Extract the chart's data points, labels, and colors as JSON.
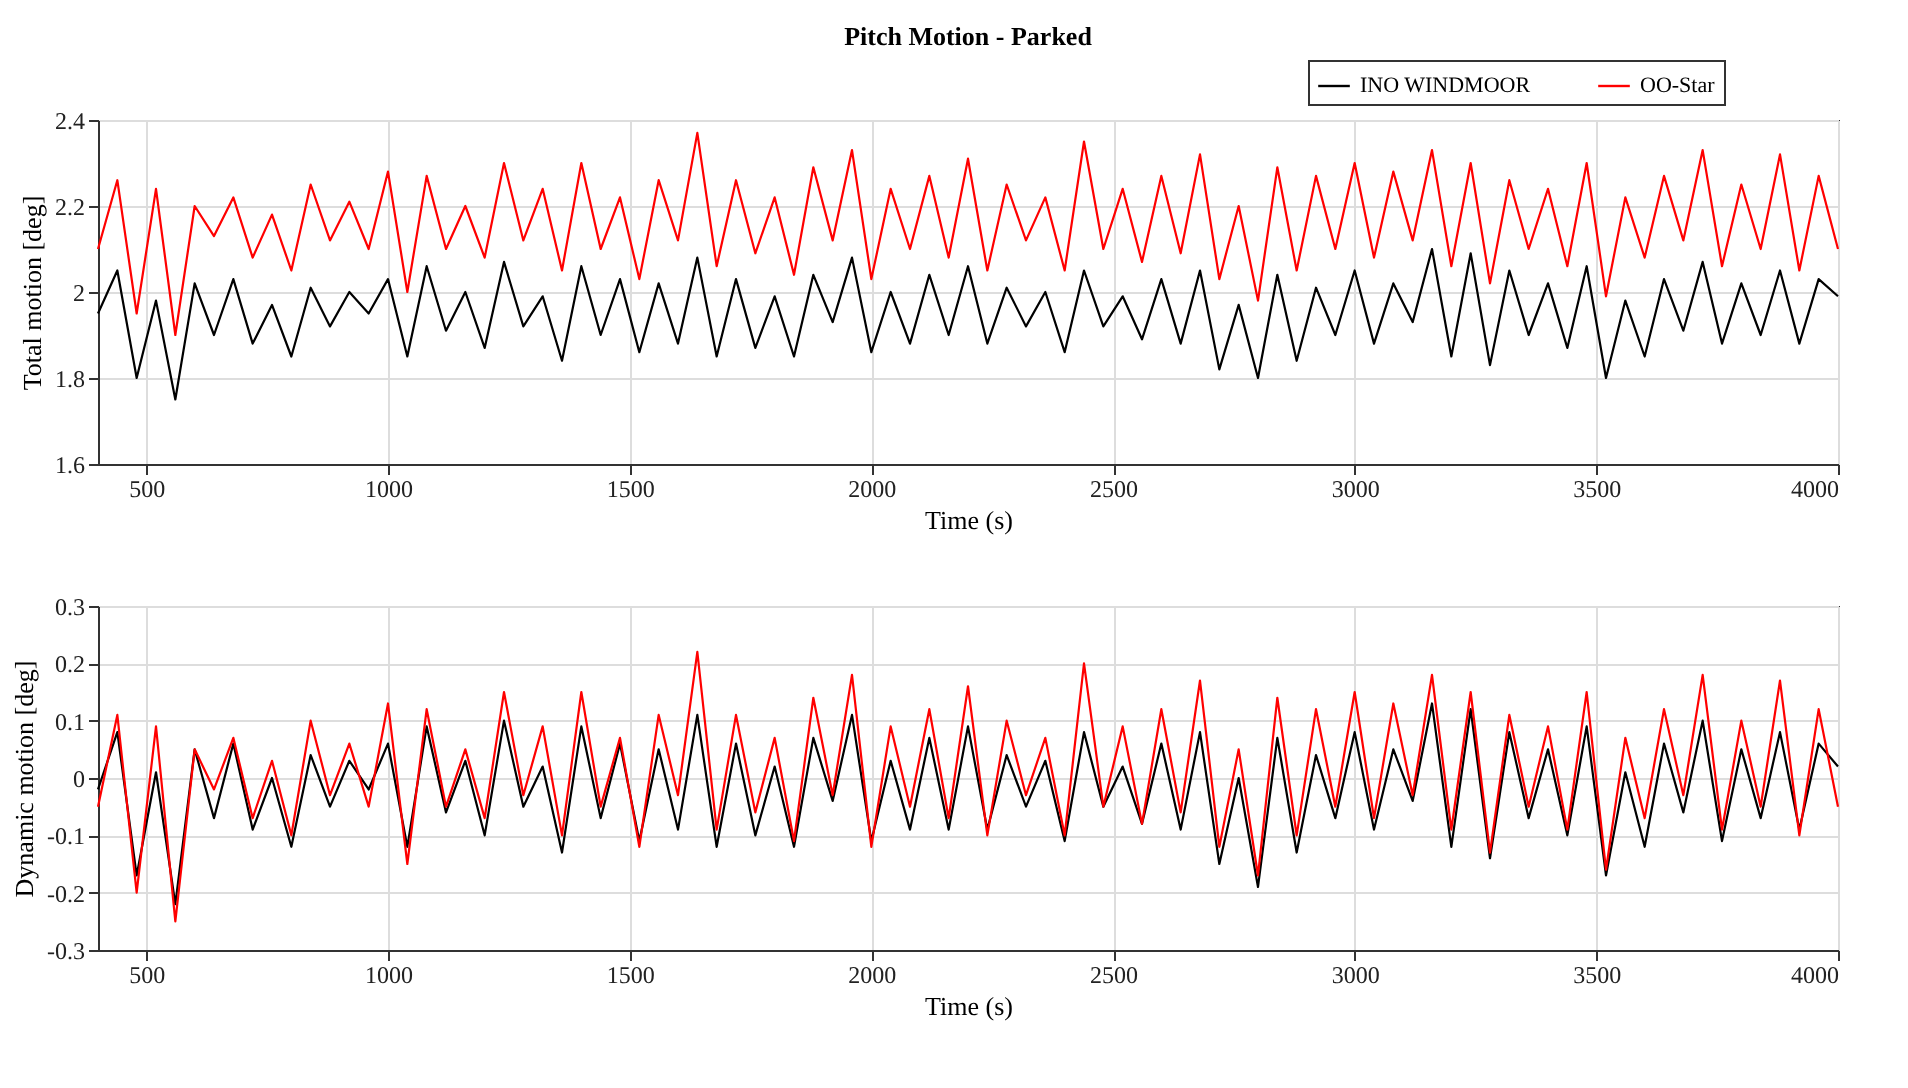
{
  "chart_data": [
    {
      "type": "line",
      "title": "Pitch Motion - Parked",
      "xlabel": "Time (s)",
      "ylabel": "Total motion [deg]",
      "x": [
        400,
        440,
        480,
        520,
        560,
        600,
        640,
        680,
        720,
        760,
        800,
        840,
        880,
        920,
        960,
        1000,
        1040,
        1080,
        1120,
        1160,
        1200,
        1240,
        1280,
        1320,
        1360,
        1400,
        1440,
        1480,
        1520,
        1560,
        1600,
        1640,
        1680,
        1720,
        1760,
        1800,
        1840,
        1880,
        1920,
        1960,
        2000,
        2040,
        2080,
        2120,
        2160,
        2200,
        2240,
        2280,
        2320,
        2360,
        2400,
        2440,
        2480,
        2520,
        2560,
        2600,
        2640,
        2680,
        2720,
        2760,
        2800,
        2840,
        2880,
        2920,
        2960,
        3000,
        3040,
        3080,
        3120,
        3160,
        3200,
        3240,
        3280,
        3320,
        3360,
        3400,
        3440,
        3480,
        3520,
        3560,
        3600,
        3640,
        3680,
        3720,
        3760,
        3800,
        3840,
        3880,
        3920,
        3960,
        4000
      ],
      "series": [
        {
          "name": "INO WINDMOOR",
          "color": "#000000",
          "values": [
            1.95,
            2.05,
            1.8,
            1.98,
            1.75,
            2.02,
            1.9,
            2.03,
            1.88,
            1.97,
            1.85,
            2.01,
            1.92,
            2.0,
            1.95,
            2.03,
            1.85,
            2.06,
            1.91,
            2.0,
            1.87,
            2.07,
            1.92,
            1.99,
            1.84,
            2.06,
            1.9,
            2.03,
            1.86,
            2.02,
            1.88,
            2.08,
            1.85,
            2.03,
            1.87,
            1.99,
            1.85,
            2.04,
            1.93,
            2.08,
            1.86,
            2.0,
            1.88,
            2.04,
            1.9,
            2.06,
            1.88,
            2.01,
            1.92,
            2.0,
            1.86,
            2.05,
            1.92,
            1.99,
            1.89,
            2.03,
            1.88,
            2.05,
            1.82,
            1.97,
            1.8,
            2.04,
            1.84,
            2.01,
            1.9,
            2.05,
            1.88,
            2.02,
            1.93,
            2.1,
            1.85,
            2.09,
            1.83,
            2.05,
            1.9,
            2.02,
            1.87,
            2.06,
            1.8,
            1.98,
            1.85,
            2.03,
            1.91,
            2.07,
            1.88,
            2.02,
            1.9,
            2.05,
            1.88,
            2.03,
            1.99
          ]
        },
        {
          "name": "OO-Star",
          "color": "#ff0000",
          "values": [
            2.1,
            2.26,
            1.95,
            2.24,
            1.9,
            2.2,
            2.13,
            2.22,
            2.08,
            2.18,
            2.05,
            2.25,
            2.12,
            2.21,
            2.1,
            2.28,
            2.0,
            2.27,
            2.1,
            2.2,
            2.08,
            2.3,
            2.12,
            2.24,
            2.05,
            2.3,
            2.1,
            2.22,
            2.03,
            2.26,
            2.12,
            2.37,
            2.06,
            2.26,
            2.09,
            2.22,
            2.04,
            2.29,
            2.12,
            2.33,
            2.03,
            2.24,
            2.1,
            2.27,
            2.08,
            2.31,
            2.05,
            2.25,
            2.12,
            2.22,
            2.05,
            2.35,
            2.1,
            2.24,
            2.07,
            2.27,
            2.09,
            2.32,
            2.03,
            2.2,
            1.98,
            2.29,
            2.05,
            2.27,
            2.1,
            2.3,
            2.08,
            2.28,
            2.12,
            2.33,
            2.06,
            2.3,
            2.02,
            2.26,
            2.1,
            2.24,
            2.06,
            2.3,
            1.99,
            2.22,
            2.08,
            2.27,
            2.12,
            2.33,
            2.06,
            2.25,
            2.1,
            2.32,
            2.05,
            2.27,
            2.1
          ]
        }
      ],
      "xlim": [
        400,
        4000
      ],
      "xticks": [
        500,
        1000,
        1500,
        2000,
        2500,
        3000,
        3500,
        4000
      ],
      "ylim": [
        1.6,
        2.4
      ],
      "yticks": [
        1.6,
        1.8,
        2,
        2.2,
        2.4
      ],
      "grid": true,
      "legend": "top right",
      "marker": "none",
      "line_style": "solid"
    },
    {
      "type": "line",
      "xlabel": "Time (s)",
      "ylabel": "Dynamic motion [deg]",
      "x": [
        400,
        440,
        480,
        520,
        560,
        600,
        640,
        680,
        720,
        760,
        800,
        840,
        880,
        920,
        960,
        1000,
        1040,
        1080,
        1120,
        1160,
        1200,
        1240,
        1280,
        1320,
        1360,
        1400,
        1440,
        1480,
        1520,
        1560,
        1600,
        1640,
        1680,
        1720,
        1760,
        1800,
        1840,
        1880,
        1920,
        1960,
        2000,
        2040,
        2080,
        2120,
        2160,
        2200,
        2240,
        2280,
        2320,
        2360,
        2400,
        2440,
        2480,
        2520,
        2560,
        2600,
        2640,
        2680,
        2720,
        2760,
        2800,
        2840,
        2880,
        2920,
        2960,
        3000,
        3040,
        3080,
        3120,
        3160,
        3200,
        3240,
        3280,
        3320,
        3360,
        3400,
        3440,
        3480,
        3520,
        3560,
        3600,
        3640,
        3680,
        3720,
        3760,
        3800,
        3840,
        3880,
        3920,
        3960,
        4000
      ],
      "series": [
        {
          "color": "#000000",
          "values": [
            -0.02,
            0.08,
            -0.17,
            0.01,
            -0.22,
            0.05,
            -0.07,
            0.06,
            -0.09,
            0.0,
            -0.12,
            0.04,
            -0.05,
            0.03,
            -0.02,
            0.06,
            -0.12,
            0.09,
            -0.06,
            0.03,
            -0.1,
            0.1,
            -0.05,
            0.02,
            -0.13,
            0.09,
            -0.07,
            0.06,
            -0.11,
            0.05,
            -0.09,
            0.11,
            -0.12,
            0.06,
            -0.1,
            0.02,
            -0.12,
            0.07,
            -0.04,
            0.11,
            -0.11,
            0.03,
            -0.09,
            0.07,
            -0.09,
            0.09,
            -0.09,
            0.04,
            -0.05,
            0.03,
            -0.11,
            0.08,
            -0.05,
            0.02,
            -0.08,
            0.06,
            -0.09,
            0.08,
            -0.15,
            0.0,
            -0.19,
            0.07,
            -0.13,
            0.04,
            -0.07,
            0.08,
            -0.09,
            0.05,
            -0.04,
            0.13,
            -0.12,
            0.12,
            -0.14,
            0.08,
            -0.07,
            0.05,
            -0.1,
            0.09,
            -0.17,
            0.01,
            -0.12,
            0.06,
            -0.06,
            0.1,
            -0.11,
            0.05,
            -0.07,
            0.08,
            -0.09,
            0.06,
            0.02
          ]
        },
        {
          "color": "#ff0000",
          "values": [
            -0.05,
            0.11,
            -0.2,
            0.09,
            -0.25,
            0.05,
            -0.02,
            0.07,
            -0.07,
            0.03,
            -0.1,
            0.1,
            -0.03,
            0.06,
            -0.05,
            0.13,
            -0.15,
            0.12,
            -0.05,
            0.05,
            -0.07,
            0.15,
            -0.03,
            0.09,
            -0.1,
            0.15,
            -0.05,
            0.07,
            -0.12,
            0.11,
            -0.03,
            0.22,
            -0.09,
            0.11,
            -0.06,
            0.07,
            -0.11,
            0.14,
            -0.03,
            0.18,
            -0.12,
            0.09,
            -0.05,
            0.12,
            -0.07,
            0.16,
            -0.1,
            0.1,
            -0.03,
            0.07,
            -0.1,
            0.2,
            -0.05,
            0.09,
            -0.08,
            0.12,
            -0.06,
            0.17,
            -0.12,
            0.05,
            -0.17,
            0.14,
            -0.1,
            0.12,
            -0.05,
            0.15,
            -0.07,
            0.13,
            -0.03,
            0.18,
            -0.09,
            0.15,
            -0.13,
            0.11,
            -0.05,
            0.09,
            -0.09,
            0.15,
            -0.16,
            0.07,
            -0.07,
            0.12,
            -0.03,
            0.18,
            -0.09,
            0.1,
            -0.05,
            0.17,
            -0.1,
            0.12,
            -0.05
          ]
        }
      ],
      "xlim": [
        400,
        4000
      ],
      "xticks": [
        500,
        1000,
        1500,
        2000,
        2500,
        3000,
        3500,
        4000
      ],
      "ylim": [
        -0.3,
        0.3
      ],
      "yticks": [
        -0.3,
        -0.2,
        -0.1,
        0,
        0.1,
        0.2,
        0.3
      ],
      "grid": true,
      "marker": "none",
      "line_style": "solid"
    }
  ]
}
